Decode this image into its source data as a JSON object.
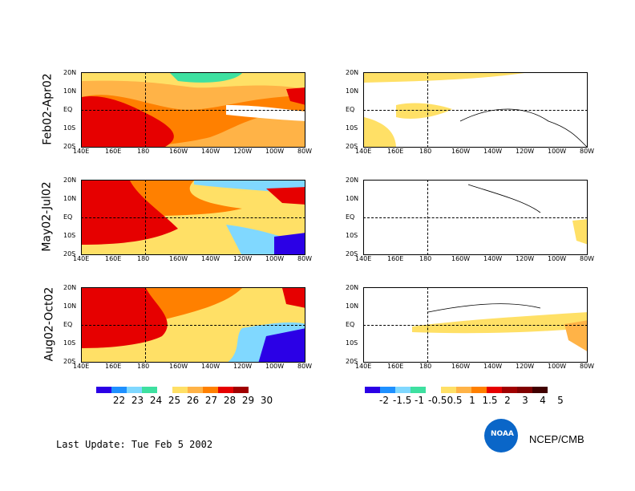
{
  "rows": [
    {
      "label": "Feb02-Apr02"
    },
    {
      "label": "May02-Jul02"
    },
    {
      "label": "Aug02-Oct02"
    }
  ],
  "lat_ticks": [
    "20N",
    "10N",
    "EQ",
    "10S",
    "20S"
  ],
  "lon_ticks": [
    "140E",
    "160E",
    "180",
    "160W",
    "140W",
    "120W",
    "100W",
    "80W"
  ],
  "legend_sst": {
    "labels": [
      "22",
      "23",
      "24",
      "25",
      "26",
      "27",
      "28",
      "29",
      "30"
    ],
    "colors": [
      "#2b00e6",
      "#1e90ff",
      "#80d8ff",
      "#3ee0a0",
      "#ffffff",
      "#ffe066",
      "#ffb347",
      "#ff8000",
      "#e60000",
      "#a00000"
    ]
  },
  "legend_anom": {
    "labels": [
      "-2",
      "-1.5",
      "-1",
      "-0.5",
      "0.5",
      "1",
      "1.5",
      "2",
      "3",
      "4",
      "5"
    ],
    "colors": [
      "#2b00e6",
      "#1e90ff",
      "#80d8ff",
      "#3ee0a0",
      "#ffffff",
      "#ffe066",
      "#ffb347",
      "#ff8000",
      "#e60000",
      "#a00000",
      "#800000",
      "#400000"
    ]
  },
  "footer": {
    "last_update": "Last Update:  Tue Feb 5 2002",
    "agency": "NCEP/CMB",
    "logo_text": "NOAA"
  }
}
